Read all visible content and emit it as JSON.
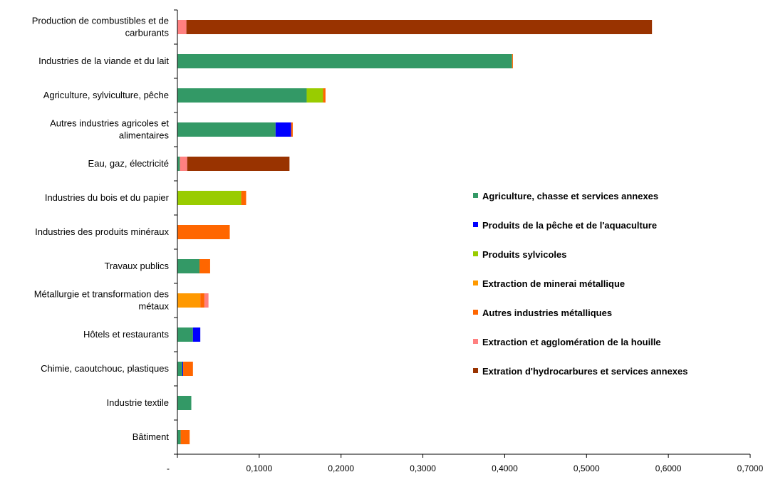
{
  "chart_data": {
    "type": "bar",
    "orientation": "horizontal",
    "stacked": true,
    "categories": [
      "Production de combustibles et de carburants",
      "Industries de la viande et du lait",
      "Agriculture, sylviculture, pêche",
      "Autres industries agricoles et alimentaires",
      "Eau, gaz, électricité",
      "Industries du bois et du papier",
      "Industries des produits minéraux",
      "Travaux publics",
      "Métallurgie et transformation des métaux",
      "Hôtels et restaurants",
      "Chimie, caoutchouc, plastiques",
      "Industrie textile",
      "Bâtiment"
    ],
    "category_lines": [
      [
        "Production de combustibles et de",
        "carburants"
      ],
      [
        "Industries de la viande et du lait"
      ],
      [
        "Agriculture, sylviculture, pêche"
      ],
      [
        "Autres industries agricoles et",
        "alimentaires"
      ],
      [
        "Eau, gaz, électricité"
      ],
      [
        "Industries du bois et du papier"
      ],
      [
        "Industries des produits minéraux"
      ],
      [
        "Travaux publics"
      ],
      [
        "Métallurgie et transformation des",
        "métaux"
      ],
      [
        "Hôtels et restaurants"
      ],
      [
        "Chimie, caoutchouc, plastiques"
      ],
      [
        "Industrie textile"
      ],
      [
        "Bâtiment"
      ]
    ],
    "series": [
      {
        "name": "Agriculture, chasse  et services annexes",
        "color": "#339966",
        "values": [
          0,
          0.409,
          0.158,
          0.12,
          0.003,
          0,
          0,
          0.027,
          0,
          0.019,
          0.006,
          0.017,
          0.004
        ]
      },
      {
        "name": "Produits de la pêche et de l'aquaculture",
        "color": "#0000ff",
        "values": [
          0,
          0,
          0,
          0.019,
          0,
          0,
          0,
          0,
          0,
          0.009,
          0.001,
          0,
          0
        ]
      },
      {
        "name": "Produits sylvicoles",
        "color": "#99cc00",
        "values": [
          0,
          0,
          0.02,
          0,
          0,
          0.078,
          0,
          0,
          0,
          0,
          0,
          0,
          0
        ]
      },
      {
        "name": "Extraction de minerai métallique",
        "color": "#ff9900",
        "values": [
          0,
          0,
          0,
          0,
          0,
          0,
          0,
          0,
          0.028,
          0,
          0,
          0,
          0
        ]
      },
      {
        "name": "Autres industries métalliques",
        "color": "#ff6600",
        "values": [
          0,
          0.001,
          0.003,
          0.002,
          0,
          0.006,
          0.064,
          0.013,
          0.005,
          0,
          0.012,
          0,
          0.011
        ]
      },
      {
        "name": "Extraction et agglomération de la houille",
        "color": "#ff8080",
        "values": [
          0.011,
          0,
          0,
          0,
          0.009,
          0,
          0,
          0,
          0.005,
          0,
          0,
          0,
          0
        ]
      },
      {
        "name": "Extration d'hydrocarbures et services annexes",
        "color": "#993300",
        "values": [
          0.569,
          0,
          0,
          0,
          0.125,
          0,
          0,
          0,
          0,
          0,
          0,
          0,
          0
        ]
      }
    ],
    "xlim": [
      0,
      0.7
    ],
    "xticks": [
      0,
      0.1,
      0.2,
      0.3,
      0.4,
      0.5,
      0.6,
      0.7
    ],
    "xtick_labels": [
      "-",
      "0,1000",
      "0,2000",
      "0,3000",
      "0,4000",
      "0,5000",
      "0,6000",
      "0,7000"
    ],
    "legend_position": "right",
    "grid": false
  }
}
